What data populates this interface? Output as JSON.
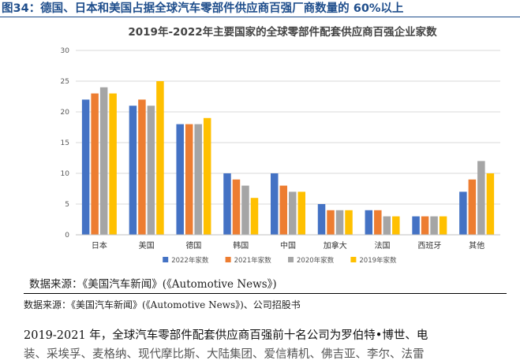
{
  "figure_title": "图34：德国、日本和美国占据全球汽车零部件供应商百强厂商数量的 60%以上",
  "chart_data": {
    "type": "bar",
    "title": "2019年-2022年主要国家的全球零部件配套供应商百强企业家数",
    "xlabel": "",
    "ylabel": "",
    "ylim": [
      0,
      30
    ],
    "yticks": [
      0,
      5,
      10,
      15,
      20,
      25,
      30
    ],
    "grid": true,
    "legend_position": "bottom",
    "categories": [
      "日本",
      "美国",
      "德国",
      "韩国",
      "中国",
      "加拿大",
      "法国",
      "西班牙",
      "其他"
    ],
    "series": [
      {
        "name": "2022年家数",
        "color": "#4472c4",
        "values": [
          22,
          21,
          18,
          10,
          10,
          5,
          4,
          3,
          7
        ]
      },
      {
        "name": "2021年家数",
        "color": "#ed7d31",
        "values": [
          23,
          22,
          18,
          9,
          8,
          4,
          4,
          3,
          9
        ]
      },
      {
        "name": "2020年家数",
        "color": "#a5a5a5",
        "values": [
          24,
          21,
          18,
          8,
          7,
          4,
          3,
          3,
          12
        ]
      },
      {
        "name": "2019年家数",
        "color": "#ffc000",
        "values": [
          23,
          25,
          19,
          6,
          7,
          4,
          3,
          3,
          10
        ]
      }
    ]
  },
  "inner_source": "数据来源：《美国汽车新闻》(《Automotive News》)",
  "source": "数据来源：《美国汽车新闻》(《Automotive News》)、公司招股书",
  "body_text": {
    "line1": "2019-2021 年，全球汽车零部件配套供应商百强前十名公司为罗伯特•博世、电",
    "line2": "装、采埃孚、麦格纳、现代摩比斯、大陆集团、爱信精机、佛吉亚、李尔、法雷"
  }
}
